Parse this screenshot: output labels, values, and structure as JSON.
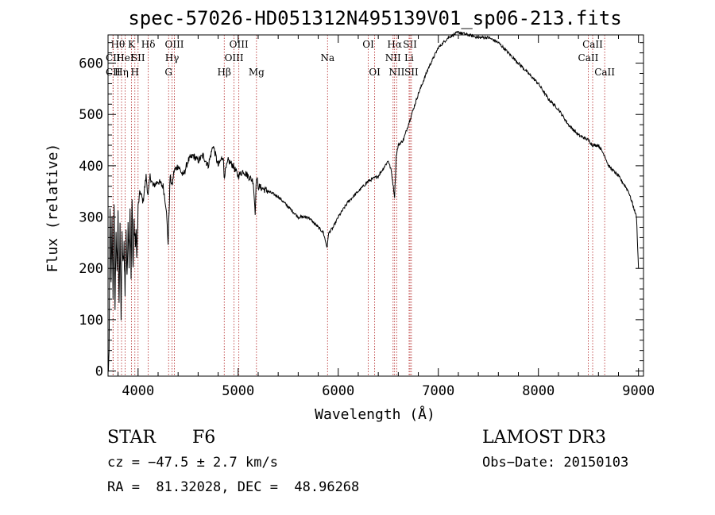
{
  "chart_data": {
    "type": "line",
    "title": "spec-57026-HD051312N495139V01_sp06-213.fits",
    "xlabel": "Wavelength (Å)",
    "ylabel": "Flux (relative)",
    "xlim": [
      3700,
      9050
    ],
    "ylim": [
      -10,
      655
    ],
    "xticks": [
      4000,
      5000,
      6000,
      7000,
      8000,
      9000
    ],
    "yticks": [
      0,
      100,
      200,
      300,
      400,
      500,
      600
    ],
    "series": [
      {
        "name": "flux",
        "x": [
          3700,
          3710,
          3720,
          3730,
          3740,
          3750,
          3760,
          3770,
          3780,
          3790,
          3800,
          3810,
          3820,
          3830,
          3840,
          3850,
          3860,
          3870,
          3880,
          3890,
          3900,
          3910,
          3920,
          3930,
          3940,
          3950,
          3960,
          3970,
          3980,
          3990,
          4000,
          4020,
          4050,
          4080,
          4100,
          4120,
          4150,
          4200,
          4250,
          4280,
          4300,
          4310,
          4320,
          4340,
          4360,
          4400,
          4450,
          4500,
          4550,
          4600,
          4650,
          4700,
          4750,
          4800,
          4850,
          4860,
          4900,
          4950,
          5000,
          5050,
          5100,
          5150,
          5170,
          5183,
          5200,
          5300,
          5400,
          5500,
          5600,
          5700,
          5800,
          5850,
          5890,
          5900,
          5910,
          5950,
          6000,
          6100,
          6200,
          6300,
          6400,
          6500,
          6530,
          6563,
          6580,
          6600,
          6650,
          6700,
          6750,
          6800,
          6900,
          7000,
          7100,
          7200,
          7300,
          7400,
          7500,
          7600,
          7700,
          7800,
          7900,
          8000,
          8100,
          8200,
          8300,
          8400,
          8500,
          8542,
          8600,
          8662,
          8700,
          8800,
          8900,
          8950,
          8980,
          9000
        ],
        "values": [
          0,
          20,
          330,
          160,
          290,
          150,
          310,
          120,
          280,
          180,
          300,
          140,
          270,
          110,
          260,
          200,
          250,
          150,
          280,
          170,
          300,
          220,
          320,
          180,
          330,
          200,
          290,
          250,
          260,
          230,
          320,
          350,
          330,
          380,
          340,
          380,
          360,
          370,
          360,
          320,
          250,
          310,
          380,
          360,
          390,
          400,
          380,
          410,
          420,
          410,
          420,
          400,
          440,
          400,
          420,
          380,
          410,
          400,
          380,
          390,
          380,
          370,
          310,
          380,
          360,
          350,
          340,
          320,
          300,
          300,
          280,
          270,
          240,
          265,
          270,
          280,
          300,
          330,
          350,
          370,
          380,
          410,
          390,
          340,
          420,
          440,
          450,
          480,
          510,
          540,
          590,
          630,
          650,
          660,
          655,
          650,
          650,
          640,
          620,
          600,
          580,
          560,
          530,
          510,
          480,
          460,
          450,
          440,
          440,
          420,
          400,
          380,
          350,
          320,
          300,
          200
        ]
      }
    ],
    "lines": [
      {
        "label": "Hθ",
        "wl": 3798,
        "row": 1
      },
      {
        "label": "CII",
        "wl": 3750,
        "row": 2
      },
      {
        "label": "CII",
        "wl": 3750,
        "row": 3
      },
      {
        "label": "K",
        "wl": 3934,
        "row": 1
      },
      {
        "label": "HeI",
        "wl": 3870,
        "row": 2
      },
      {
        "label": "Hη",
        "wl": 3835,
        "row": 3
      },
      {
        "label": "SII",
        "wl": 4000,
        "row": 2
      },
      {
        "label": "H",
        "wl": 3968,
        "row": 3
      },
      {
        "label": "Hδ",
        "wl": 4102,
        "row": 1
      },
      {
        "label": "OIII",
        "wl": 4363,
        "row": 1
      },
      {
        "label": "Hγ",
        "wl": 4340,
        "row": 2
      },
      {
        "label": "G",
        "wl": 4305,
        "row": 3
      },
      {
        "label": "OIII",
        "wl": 5007,
        "row": 1
      },
      {
        "label": "OIII",
        "wl": 4959,
        "row": 2
      },
      {
        "label": "Hβ",
        "wl": 4861,
        "row": 3
      },
      {
        "label": "Mg",
        "wl": 5183,
        "row": 3
      },
      {
        "label": "Na",
        "wl": 5893,
        "row": 2
      },
      {
        "label": "OI",
        "wl": 6300,
        "row": 1
      },
      {
        "label": "OI",
        "wl": 6364,
        "row": 3
      },
      {
        "label": "Hα",
        "wl": 6563,
        "row": 1
      },
      {
        "label": "NII",
        "wl": 6548,
        "row": 2
      },
      {
        "label": "NII",
        "wl": 6584,
        "row": 3
      },
      {
        "label": "SII",
        "wl": 6717,
        "row": 1
      },
      {
        "label": "Li",
        "wl": 6708,
        "row": 2
      },
      {
        "label": "SII",
        "wl": 6731,
        "row": 3
      },
      {
        "label": "CaII",
        "wl": 8542,
        "row": 1
      },
      {
        "label": "CaII",
        "wl": 8498,
        "row": 2
      },
      {
        "label": "CaII",
        "wl": 8662,
        "row": 3
      }
    ]
  },
  "info": {
    "object_type": "STAR",
    "subclass": "F6",
    "survey": "LAMOST DR3",
    "cz": "cz = −47.5 ± 2.7 km/s",
    "obs_date": "Obs−Date: 20150103",
    "coords": "RA =  81.32028, DEC =  48.96268"
  },
  "colors": {
    "line_marker": "#b22222",
    "spectrum": "#000000"
  }
}
